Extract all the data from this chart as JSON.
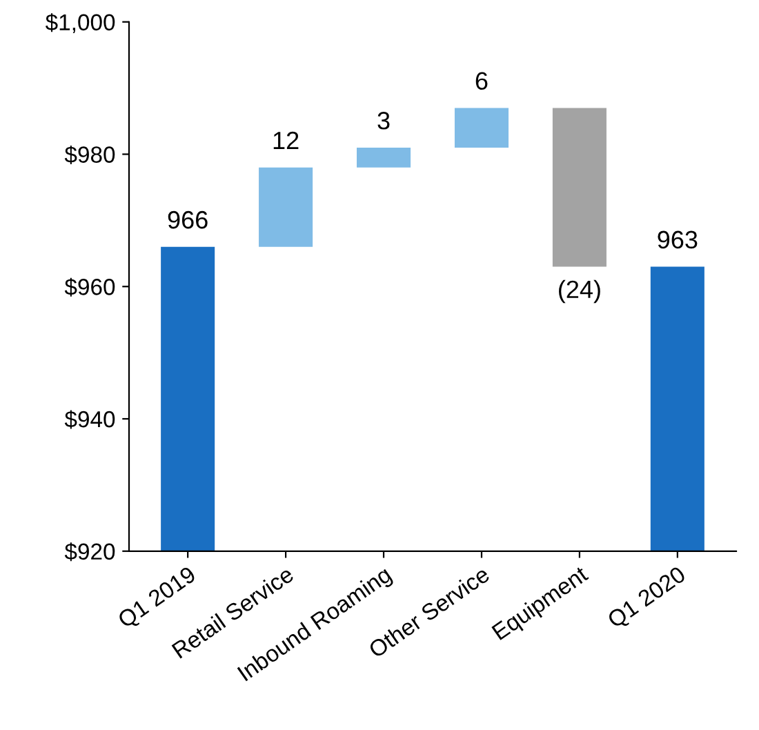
{
  "chart_data": {
    "type": "bar",
    "categories": [
      "Q1 2019",
      "Retail Service",
      "Inbound Roaming",
      "Other Service",
      "Equipment",
      "Q1 2020"
    ],
    "values": [
      966,
      12,
      3,
      6,
      -24,
      963
    ],
    "base": [
      0,
      966,
      978,
      981,
      987,
      0
    ],
    "colors": [
      "#1a6fc2",
      "#7fbbe6",
      "#7fbbe6",
      "#7fbbe6",
      "#a3a3a3",
      "#1a6fc2"
    ],
    "value_labels": [
      "966",
      "12",
      "3",
      "6",
      "(24)",
      "963"
    ],
    "ylim": [
      920,
      1000
    ],
    "yticks": [
      {
        "value": 920,
        "label": "$920"
      },
      {
        "value": 940,
        "label": "$940"
      },
      {
        "value": 960,
        "label": "$960"
      },
      {
        "value": 980,
        "label": "$980"
      },
      {
        "value": 1000,
        "label": "$1,000"
      }
    ],
    "grid": false
  }
}
